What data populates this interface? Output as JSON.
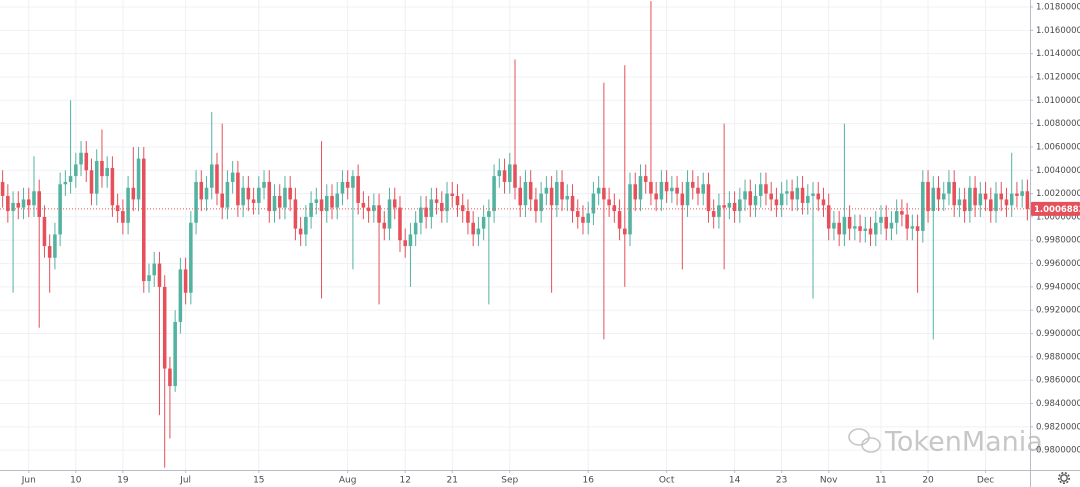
{
  "chart_data": {
    "type": "candlestick",
    "up_color": "#53b2a0",
    "down_color": "#e5505a",
    "grid": true,
    "watermark": "TokenMania",
    "ylim": [
      0.9783,
      1.0186
    ],
    "yticks": [
      {
        "value": 0.98,
        "label": "0.98000000"
      },
      {
        "value": 0.982,
        "label": "0.98200000"
      },
      {
        "value": 0.984,
        "label": "0.98400000"
      },
      {
        "value": 0.986,
        "label": "0.98600000"
      },
      {
        "value": 0.988,
        "label": "0.98800000"
      },
      {
        "value": 0.99,
        "label": "0.99000000"
      },
      {
        "value": 0.992,
        "label": "0.99200000"
      },
      {
        "value": 0.994,
        "label": "0.99400000"
      },
      {
        "value": 0.996,
        "label": "0.99600000"
      },
      {
        "value": 0.998,
        "label": "0.99800000"
      },
      {
        "value": 1.0,
        "label": "1.00000000"
      },
      {
        "value": 1.002,
        "label": "1.00200000"
      },
      {
        "value": 1.004,
        "label": "1.00400000"
      },
      {
        "value": 1.006,
        "label": "1.00600000"
      },
      {
        "value": 1.008,
        "label": "1.00800000"
      },
      {
        "value": 1.01,
        "label": "1.01000000"
      },
      {
        "value": 1.012,
        "label": "1.01200000"
      },
      {
        "value": 1.014,
        "label": "1.01400000"
      },
      {
        "value": 1.016,
        "label": "1.01600000"
      },
      {
        "value": 1.018,
        "label": "1.01800000"
      }
    ],
    "categories": [
      null,
      null,
      null,
      null,
      null,
      "Jun",
      null,
      null,
      null,
      null,
      null,
      null,
      null,
      null,
      "10",
      null,
      null,
      null,
      null,
      null,
      null,
      null,
      null,
      "19",
      null,
      null,
      null,
      null,
      null,
      null,
      null,
      null,
      null,
      null,
      null,
      "Jul",
      null,
      null,
      null,
      null,
      null,
      null,
      null,
      null,
      null,
      null,
      null,
      null,
      null,
      "15",
      null,
      null,
      null,
      null,
      null,
      null,
      null,
      null,
      null,
      null,
      null,
      null,
      null,
      null,
      null,
      null,
      "Aug",
      null,
      null,
      null,
      null,
      null,
      null,
      null,
      null,
      null,
      null,
      "12",
      null,
      null,
      null,
      null,
      null,
      null,
      null,
      null,
      "21",
      null,
      null,
      null,
      null,
      null,
      null,
      null,
      null,
      null,
      null,
      "Sep",
      null,
      null,
      null,
      null,
      null,
      null,
      null,
      null,
      null,
      null,
      null,
      null,
      null,
      null,
      "16",
      null,
      null,
      null,
      null,
      null,
      null,
      null,
      null,
      null,
      null,
      null,
      null,
      null,
      null,
      "Oct",
      null,
      null,
      null,
      null,
      null,
      null,
      null,
      null,
      null,
      null,
      null,
      null,
      "14",
      null,
      null,
      null,
      null,
      null,
      null,
      null,
      null,
      "23",
      null,
      null,
      null,
      null,
      null,
      null,
      null,
      null,
      "Nov",
      null,
      null,
      null,
      null,
      null,
      null,
      null,
      null,
      null,
      "11",
      null,
      null,
      null,
      null,
      null,
      null,
      null,
      null,
      "20",
      null,
      null,
      null,
      null,
      null,
      null,
      null,
      null,
      null,
      null,
      "Dec",
      null,
      null,
      null,
      null,
      null,
      null,
      null,
      null
    ],
    "open": [
      1.003,
      1.0018,
      1.0005,
      1.0012,
      1.0008,
      1.0015,
      1.001,
      1.0022,
      1,
      0.9975,
      0.9965,
      0.9985,
      1.0028,
      1.003,
      1.0035,
      1.0045,
      1.0055,
      1.004,
      1.002,
      1.0048,
      1.0035,
      1.0042,
      1.001,
      1.0005,
      0.9995,
      1.0025,
      1.0015,
      1.005,
      0.9945,
      0.995,
      0.996,
      0.994,
      0.987,
      0.9855,
      0.991,
      0.9955,
      0.9935,
      0.9995,
      1.003,
      1.0015,
      1.0025,
      1.0045,
      1.002,
      1.0008,
      1.003,
      1.0038,
      1.001,
      1.0025,
      1.0015,
      1.0012,
      1.0025,
      1.003,
      1.0005,
      1.0018,
      1.0008,
      1.0025,
      1.0015,
      0.999,
      0.9985,
      1,
      1.0012,
      1.0015,
      1.0005,
      1.0018,
      1.0008,
      1.002,
      1.003,
      1.0025,
      1.0035,
      1.0012,
      1.0008,
      1.0005,
      1.001,
      0.9995,
      0.999,
      1.0015,
      1.0008,
      0.998,
      0.9975,
      0.9985,
      0.9995,
      1.0008,
      1,
      1.0015,
      1.0012,
      1.0005,
      1.002,
      1.0018,
      1.001,
      1.0005,
      0.9995,
      0.9985,
      0.999,
      1,
      1.0005,
      1.0035,
      1.004,
      1.003,
      1.0045,
      1.0025,
      1.001,
      1.003,
      1.0015,
      1.0005,
      1.002,
      1.0025,
      1.001,
      1.003,
      1.0015,
      1.0018,
      1.0005,
      1,
      0.9995,
      1.0003,
      1.002,
      1.0025,
      1.0015,
      1.001,
      1.0005,
      0.999,
      0.9985,
      1.0028,
      1.0015,
      1.0035,
      1.003,
      1.002,
      1.0015,
      1.003,
      1.0022,
      1.0025,
      1.002,
      1.001,
      1.003,
      1.0025,
      1.002,
      1.0028,
      1.0005,
      1,
      1.001,
      1.0008,
      1.0012,
      1.0005,
      1.0015,
      1.0022,
      1.001,
      1.0018,
      1.0028,
      1.002,
      1.0015,
      1.001,
      1.002,
      1.0022,
      1.0015,
      1.0025,
      1.0012,
      1.0018,
      1.002,
      1.0015,
      1.001,
      0.999,
      0.9995,
      0.9985,
      1,
      0.999,
      0.9992,
      0.9988,
      0.999,
      0.9985,
      0.9995,
      1,
      0.999,
      0.9995,
      1.0005,
      1.0002,
      0.999,
      0.9992,
      0.9988,
      1.003,
      1.0005,
      1.0025,
      1.0015,
      1.002,
      1.003,
      1.001,
      1.0015,
      1.0005,
      1.0025,
      1.001,
      1.002,
      1.0015,
      1.0005,
      1.002,
      1.0015,
      1.001,
      1.002,
      1.0018,
      1.0022
    ],
    "high": [
      1.004,
      1.0028,
      1.0022,
      1.0022,
      1.0025,
      1.0025,
      1.0052,
      1.0032,
      1.001,
      0.9985,
      0.9995,
      1.0038,
      1.004,
      1.01,
      1.0055,
      1.0065,
      1.0065,
      1.005,
      1.0058,
      1.0075,
      1.0052,
      1.0052,
      1.002,
      1.0015,
      1.0035,
      1.006,
      1.006,
      1.006,
      0.996,
      0.997,
      0.997,
      0.995,
      0.988,
      0.992,
      0.9965,
      0.9965,
      1.0005,
      1.004,
      1.004,
      1.0035,
      1.009,
      1.0055,
      1.008,
      1.004,
      1.0048,
      1.0048,
      1.0035,
      1.0035,
      1.0025,
      1.0035,
      1.004,
      1.004,
      1.0028,
      1.0028,
      1.0035,
      1.0035,
      1.0025,
      1,
      1.001,
      1.0022,
      1.0025,
      1.0065,
      1.0028,
      1.0028,
      1.003,
      1.004,
      1.004,
      1.004,
      1.0045,
      1.0022,
      1.0018,
      1.002,
      1.002,
      1.0005,
      1.0025,
      1.0025,
      1.0018,
      0.999,
      0.9995,
      1.0005,
      1.0018,
      1.0018,
      1.0025,
      1.0025,
      1.0022,
      1.003,
      1.003,
      1.0028,
      1.002,
      1.0015,
      1.0005,
      1,
      1.001,
      1.0015,
      1.0045,
      1.005,
      1.005,
      1.0055,
      1.0135,
      1.0035,
      1.004,
      1.004,
      1.0025,
      1.003,
      1.0035,
      1.0035,
      1.004,
      1.004,
      1.0028,
      1.0028,
      1.0015,
      1.001,
      1.0013,
      1.003,
      1.0035,
      1.0115,
      1.0025,
      1.002,
      1.0015,
      1.013,
      1.0038,
      1.0038,
      1.0045,
      1.0045,
      1.0185,
      1.003,
      1.004,
      1.004,
      1.0035,
      1.0035,
      1.003,
      1.004,
      1.004,
      1.0035,
      1.0038,
      1.0038,
      1.0015,
      1.002,
      1.008,
      1.0022,
      1.0022,
      1.0025,
      1.0032,
      1.0032,
      1.0028,
      1.0038,
      1.0038,
      1.003,
      1.0025,
      1.003,
      1.0032,
      1.0032,
      1.0035,
      1.0035,
      1.0028,
      1.003,
      1.003,
      1.0025,
      1.002,
      1.0005,
      1.0005,
      1.008,
      1.001,
      1.0002,
      1.0002,
      1,
      1,
      1.0005,
      1.001,
      1.001,
      1.0005,
      1.0015,
      1.0015,
      1.0012,
      1.0002,
      1.0002,
      1.004,
      1.004,
      1.0035,
      1.0035,
      1.003,
      1.004,
      1.004,
      1.0025,
      1.0025,
      1.0035,
      1.0035,
      1.003,
      1.003,
      1.0025,
      1.003,
      1.003,
      1.0025,
      1.0055,
      1.003,
      1.0032,
      1.0032
    ],
    "low": [
      1.0008,
      0.9995,
      0.9935,
      0.9998,
      0.9998,
      1,
      1,
      0.9905,
      0.9965,
      0.9935,
      0.9955,
      0.9975,
      1.0018,
      1.002,
      1.0025,
      1.0035,
      1.003,
      1.001,
      1.001,
      1.0025,
      1.0025,
      1,
      0.9995,
      0.9985,
      0.9985,
      1.0005,
      1.0005,
      0.9935,
      0.9935,
      0.994,
      0.983,
      0.9785,
      0.981,
      0.985,
      0.99,
      0.9925,
      0.9925,
      0.9985,
      1.0005,
      1.0005,
      1.0015,
      1.001,
      0.9998,
      0.9998,
      1.002,
      1,
      1,
      1.0005,
      1.0002,
      1.0002,
      1.0015,
      0.9995,
      0.9995,
      0.9998,
      0.9998,
      1.0005,
      0.998,
      0.9975,
      0.9975,
      0.999,
      1.0002,
      0.993,
      0.9995,
      0.9998,
      0.9998,
      1.001,
      1.0015,
      0.9955,
      1.0002,
      0.9998,
      0.9995,
      0.9995,
      0.9925,
      0.998,
      0.998,
      0.9998,
      0.997,
      0.9965,
      0.994,
      0.9975,
      0.9985,
      0.999,
      0.999,
      1.0002,
      0.9995,
      0.9995,
      1.0008,
      1,
      0.9995,
      0.9985,
      0.9975,
      0.9975,
      0.998,
      0.9925,
      0.9995,
      1.0025,
      1.002,
      1.002,
      1.0015,
      1,
      1,
      1.0005,
      0.9995,
      0.9995,
      1.001,
      0.9935,
      1,
      1.0005,
      1.0005,
      0.9995,
      0.999,
      0.9985,
      0.9985,
      0.9993,
      1.001,
      0.9895,
      1,
      0.9995,
      0.998,
      0.994,
      0.9975,
      1.0005,
      1.0005,
      1.002,
      1.001,
      1.0005,
      1.0005,
      1.0012,
      1.0012,
      1.001,
      0.9955,
      1,
      1.0015,
      1.001,
      1.001,
      0.9995,
      0.999,
      0.999,
      0.9955,
      0.9998,
      0.9995,
      0.9995,
      1.0005,
      1,
      1,
      1.0008,
      1.001,
      1.0005,
      1,
      1,
      1.001,
      1.0005,
      1.0005,
      1.0002,
      1.0002,
      0.993,
      1.0005,
      1,
      0.998,
      0.998,
      0.9975,
      0.9975,
      0.998,
      0.998,
      0.9978,
      0.9978,
      0.9975,
      0.9975,
      0.9985,
      0.998,
      0.998,
      0.9985,
      0.9992,
      0.998,
      0.998,
      0.9935,
      0.9978,
      0.9995,
      0.9895,
      1.0005,
      1.0005,
      1.001,
      1,
      1,
      0.9995,
      0.9995,
      1,
      1,
      1.0005,
      0.9995,
      0.9995,
      1.0005,
      1,
      1,
      1.0008,
      1.0008,
      0.9997
    ],
    "close": [
      1.0018,
      1.0005,
      1.0012,
      1.0008,
      1.0015,
      1.001,
      1.0022,
      1,
      0.9975,
      0.9965,
      0.9985,
      1.0028,
      1.003,
      1.0035,
      1.0045,
      1.0055,
      1.004,
      1.002,
      1.0048,
      1.0035,
      1.0042,
      1.001,
      1.0005,
      0.9995,
      1.0025,
      1.0015,
      1.005,
      0.9945,
      0.995,
      0.996,
      0.994,
      0.987,
      0.9855,
      0.991,
      0.9955,
      0.9935,
      0.9995,
      1.003,
      1.0015,
      1.0025,
      1.0045,
      1.002,
      1.0008,
      1.003,
      1.0038,
      1.001,
      1.0025,
      1.0015,
      1.0012,
      1.0025,
      1.003,
      1.0005,
      1.0018,
      1.0008,
      1.0025,
      1.0015,
      0.999,
      0.9985,
      1,
      1.0012,
      1.0015,
      1.0005,
      1.0018,
      1.0008,
      1.002,
      1.003,
      1.0025,
      1.0035,
      1.0012,
      1.0008,
      1.0005,
      1.001,
      0.9995,
      0.999,
      1.0015,
      1.0008,
      0.998,
      0.9975,
      0.9985,
      0.9995,
      1.0008,
      1,
      1.0015,
      1.0012,
      1.0005,
      1.002,
      1.0018,
      1.001,
      1.0005,
      0.9995,
      0.9985,
      0.999,
      1,
      1.0005,
      1.0035,
      1.004,
      1.003,
      1.0045,
      1.0025,
      1.001,
      1.003,
      1.0015,
      1.0005,
      1.002,
      1.0025,
      1.001,
      1.003,
      1.0015,
      1.0018,
      1.0005,
      1,
      0.9995,
      1.0003,
      1.002,
      1.0025,
      1.0015,
      1.001,
      1.0005,
      0.999,
      0.9985,
      1.0028,
      1.0015,
      1.0035,
      1.003,
      1.002,
      1.0015,
      1.003,
      1.0022,
      1.0025,
      1.002,
      1.001,
      1.003,
      1.0025,
      1.002,
      1.0028,
      1.0005,
      1,
      1.001,
      1.0008,
      1.0012,
      1.0005,
      1.0015,
      1.0022,
      1.001,
      1.0018,
      1.0028,
      1.002,
      1.0015,
      1.001,
      1.002,
      1.0022,
      1.0015,
      1.0025,
      1.0012,
      1.0018,
      1.002,
      1.0015,
      1.001,
      0.999,
      0.9995,
      0.9985,
      1,
      0.999,
      0.9992,
      0.9988,
      0.999,
      0.9985,
      0.9995,
      1,
      0.999,
      0.9995,
      1.0005,
      1.0002,
      0.999,
      0.9992,
      0.9988,
      1.003,
      1.0005,
      1.0025,
      1.0015,
      1.002,
      1.003,
      1.001,
      1.0015,
      1.0005,
      1.0025,
      1.001,
      1.002,
      1.0015,
      1.0005,
      1.002,
      1.0015,
      1.001,
      1.002,
      1.0018,
      1.0022,
      1.00068833
    ]
  }
}
